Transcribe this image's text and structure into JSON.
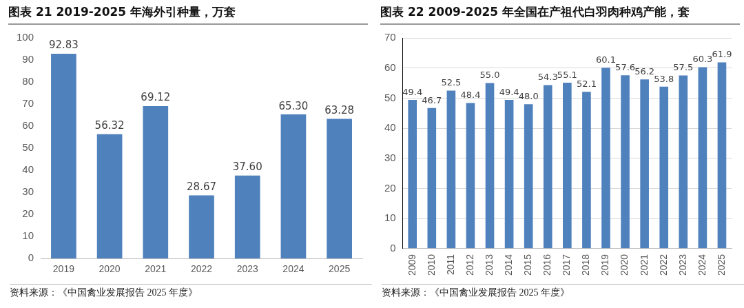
{
  "chart_data": [
    {
      "type": "bar",
      "title": "图表 21 2019-2025 年海外引种量，万套",
      "categories": [
        "2019",
        "2020",
        "2021",
        "2022",
        "2023",
        "2024",
        "2025"
      ],
      "values": [
        92.83,
        56.32,
        69.12,
        28.67,
        37.6,
        65.3,
        63.28
      ],
      "value_labels": [
        "92.83",
        "56.32",
        "69.12",
        "28.67",
        "37.60",
        "65.30",
        "63.28"
      ],
      "color": "#4f81bd",
      "ylim": [
        0,
        100
      ],
      "yticks": [
        0,
        10,
        20,
        30,
        40,
        50,
        60,
        70,
        80,
        90,
        100
      ],
      "grid": false,
      "annotations": [
        "资料来源：《中国禽业发展报告 2025 年度》"
      ]
    },
    {
      "type": "bar",
      "title": "图表 22 2009-2025 年全国在产祖代白羽肉种鸡产能，套",
      "categories": [
        "2009",
        "2010",
        "2011",
        "2012",
        "2013",
        "2014",
        "2015",
        "2016",
        "2017",
        "2018",
        "2019",
        "2020",
        "2021",
        "2022",
        "2023",
        "2024",
        "2025"
      ],
      "values": [
        49.4,
        46.7,
        52.5,
        48.4,
        55.0,
        49.4,
        48.0,
        54.3,
        55.1,
        52.1,
        60.1,
        57.6,
        56.2,
        53.8,
        57.5,
        60.3,
        61.9
      ],
      "value_labels": [
        "49.4",
        "46.7",
        "52.5",
        "48.4",
        "55.0",
        "49.4",
        "48.0",
        "54.3",
        "55.1",
        "52.1",
        "60.1",
        "57.6",
        "56.2",
        "53.8",
        "57.5",
        "60.3",
        "61.9"
      ],
      "color": "#4f81bd",
      "ylim": [
        0,
        70
      ],
      "yticks": [
        0,
        10,
        20,
        30,
        40,
        50,
        60,
        70
      ],
      "grid": "y",
      "annotations": [
        "资料来源：《中国禽业发展报告 2025 年度》"
      ]
    }
  ]
}
